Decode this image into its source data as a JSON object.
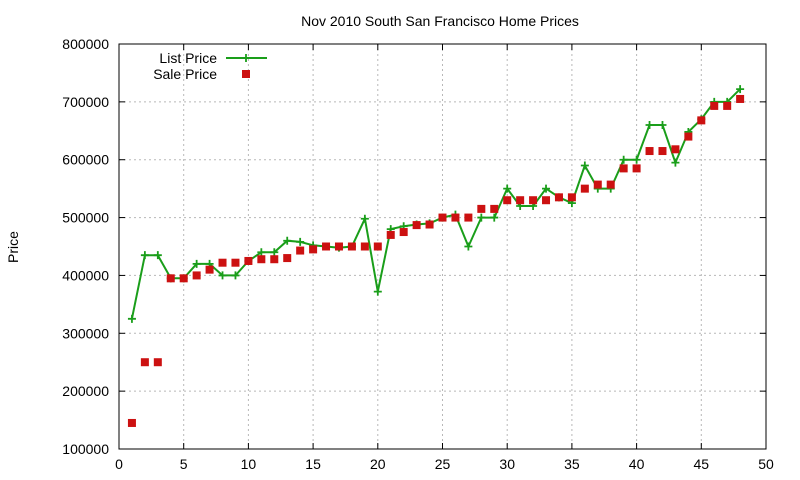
{
  "chart_data": {
    "type": "line",
    "title": "Nov 2010 South San Francisco Home Prices",
    "xlabel": "",
    "ylabel": "Price",
    "xlim": [
      0,
      50
    ],
    "ylim": [
      100000,
      800000
    ],
    "x_ticks": [
      "0",
      "5",
      "10",
      "15",
      "20",
      "25",
      "30",
      "35",
      "40",
      "45",
      "50"
    ],
    "y_ticks": [
      "100000",
      "200000",
      "300000",
      "400000",
      "500000",
      "600000",
      "700000",
      "800000"
    ],
    "grid": true,
    "legend_position": "top-left",
    "series": [
      {
        "name": "List Price",
        "style": "line-plus",
        "color": "#1a9e1a",
        "x": [
          1,
          2,
          3,
          4,
          5,
          6,
          7,
          8,
          9,
          10,
          11,
          12,
          13,
          14,
          15,
          16,
          17,
          18,
          19,
          20,
          21,
          22,
          23,
          24,
          25,
          26,
          27,
          28,
          29,
          30,
          31,
          32,
          33,
          34,
          35,
          36,
          37,
          38,
          39,
          40,
          41,
          42,
          43,
          44,
          45,
          46,
          47,
          48
        ],
        "values": [
          325000,
          435000,
          435000,
          395000,
          395000,
          420000,
          420000,
          400000,
          400000,
          425000,
          440000,
          440000,
          460000,
          458000,
          452000,
          450000,
          448000,
          450000,
          498000,
          372000,
          480000,
          485000,
          488000,
          490000,
          500000,
          505000,
          450000,
          500000,
          500000,
          550000,
          520000,
          520000,
          550000,
          535000,
          525000,
          590000,
          550000,
          550000,
          600000,
          600000,
          660000,
          660000,
          595000,
          648000,
          670000,
          700000,
          700000,
          722000
        ]
      },
      {
        "name": "Sale Price",
        "style": "points-square",
        "color": "#cc1111",
        "x": [
          1,
          2,
          3,
          4,
          5,
          6,
          7,
          8,
          9,
          10,
          11,
          12,
          13,
          14,
          15,
          16,
          17,
          18,
          19,
          20,
          21,
          22,
          23,
          24,
          25,
          26,
          27,
          28,
          29,
          30,
          31,
          32,
          33,
          34,
          35,
          36,
          37,
          38,
          39,
          40,
          41,
          42,
          43,
          44,
          45,
          46,
          47,
          48
        ],
        "values": [
          145000,
          250000,
          250000,
          395000,
          395000,
          400000,
          410000,
          422000,
          422000,
          425000,
          428000,
          428000,
          430000,
          443000,
          445000,
          450000,
          450000,
          450000,
          450000,
          450000,
          470000,
          475000,
          487000,
          488000,
          500000,
          500000,
          500000,
          515000,
          515000,
          530000,
          530000,
          530000,
          530000,
          535000,
          535000,
          550000,
          557000,
          557000,
          585000,
          585000,
          615000,
          615000,
          618000,
          640000,
          668000,
          693000,
          693000,
          705000
        ]
      }
    ]
  }
}
